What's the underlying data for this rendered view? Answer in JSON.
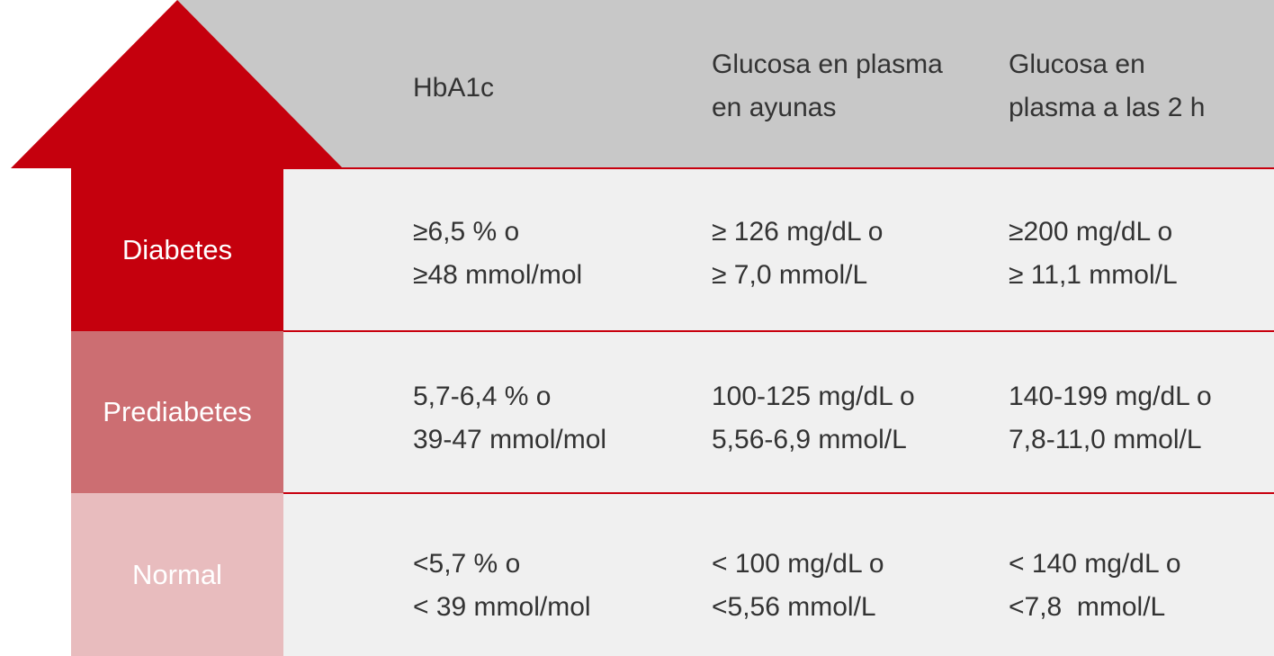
{
  "colors": {
    "diabetes": "#c5000d",
    "prediabetes": "#cc6e72",
    "normal": "#e8bcbe",
    "header": "#c8c8c8",
    "divider": "#c8000e"
  },
  "header": {
    "columns": [
      {
        "line1": "HbA1c",
        "line2": ""
      },
      {
        "line1": "Glucosa en plasma",
        "line2": "en ayunas"
      },
      {
        "line1": "Glucosa en",
        "line2": "plasma a las 2 h"
      }
    ]
  },
  "rows": [
    {
      "label": "Diabetes",
      "cells": [
        [
          "≥6,5 % o",
          "≥48 mmol/mol"
        ],
        [
          "≥ 126 mg/dL o",
          "≥ 7,0 mmol/L"
        ],
        [
          "≥200 mg/dL o",
          "≥ 11,1 mmol/L"
        ]
      ]
    },
    {
      "label": "Prediabetes",
      "cells": [
        [
          "5,7-6,4 % o",
          "39-47 mmol/mol"
        ],
        [
          "100-125 mg/dL o",
          "5,56-6,9 mmol/L"
        ],
        [
          "140-199 mg/dL o",
          "7,8-11,0 mmol/L"
        ]
      ]
    },
    {
      "label": "Normal",
      "cells": [
        [
          "<5,7 % o",
          "< 39 mmol/mol"
        ],
        [
          "< 100 mg/dL o",
          "<5,56 mmol/L"
        ],
        [
          "< 140 mg/dL o",
          "<7,8  mmol/L"
        ]
      ]
    }
  ]
}
